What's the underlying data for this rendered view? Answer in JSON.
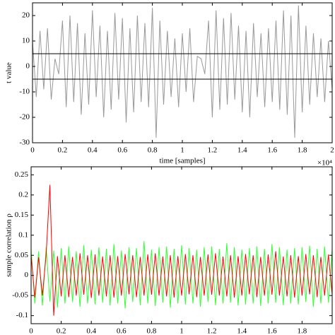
{
  "chart_data": [
    {
      "type": "line",
      "x_label": "time [samples]",
      "y_label": "t value",
      "x_exponent_label": "×10⁴",
      "xlim": [
        0,
        20000
      ],
      "ylim": [
        -30,
        25
      ],
      "xticks": [
        0,
        {
          "value": 2000,
          "label": "0.2"
        },
        {
          "value": 4000,
          "label": "0.4"
        },
        {
          "value": 6000,
          "label": "0.6"
        },
        {
          "value": 8000,
          "label": "0.8"
        },
        {
          "value": 10000,
          "label": "1"
        },
        {
          "value": 12000,
          "label": "1.2"
        },
        {
          "value": 14000,
          "label": "1.4"
        },
        {
          "value": 16000,
          "label": "1.6"
        },
        {
          "value": 18000,
          "label": "1.8"
        },
        {
          "value": 20000,
          "label": "2"
        }
      ],
      "yticks": [
        -30,
        -20,
        -10,
        0,
        10,
        20
      ],
      "reference_lines": [
        5,
        -5
      ],
      "reference_color": "#000000",
      "x": [
        0,
        250,
        500,
        750,
        1000,
        1250,
        1500,
        1750,
        2000,
        2250,
        2500,
        2750,
        3000,
        3250,
        3500,
        3750,
        4000,
        4250,
        4500,
        4750,
        5000,
        5250,
        5500,
        5750,
        6000,
        6250,
        6500,
        6750,
        7000,
        7250,
        7500,
        7750,
        8000,
        8250,
        8500,
        8750,
        9000,
        9250,
        9500,
        9750,
        10000,
        10250,
        10500,
        10750,
        11000,
        11250,
        11500,
        11750,
        12000,
        12250,
        12500,
        12750,
        13000,
        13250,
        13500,
        13750,
        14000,
        14250,
        14500,
        14750,
        15000,
        15250,
        15500,
        15750,
        16000,
        16250,
        16500,
        16750,
        17000,
        17250,
        17500,
        17750,
        18000,
        18250,
        18500,
        18750,
        19000,
        19250,
        19500,
        19750,
        20000
      ],
      "series": [
        {
          "color": "#999999",
          "values": [
            10,
            -12,
            14,
            -9,
            15,
            -13,
            3,
            -3,
            18,
            -16,
            20,
            -14,
            17,
            -19,
            13,
            -15,
            22,
            -12,
            16,
            -20,
            14,
            -17,
            21,
            -13,
            19,
            -22,
            15,
            -18,
            20,
            -14,
            17,
            -16,
            23,
            -28,
            18,
            -15,
            14,
            -12,
            11,
            -16,
            13,
            -10,
            15,
            -14,
            4,
            3,
            -3,
            18,
            -20,
            22,
            -17,
            19,
            -15,
            21,
            -13,
            16,
            -18,
            14,
            -20,
            17,
            -12,
            13,
            -16,
            15,
            -14,
            18,
            -17,
            22,
            -19,
            20,
            -28,
            24,
            -18,
            16,
            -15,
            13,
            -12,
            11,
            -14,
            10,
            -9
          ]
        }
      ]
    },
    {
      "type": "line",
      "y_label": "sample correlation ρ",
      "x_exponent_label": "×10⁴",
      "xlim": [
        0,
        20000
      ],
      "ylim": [
        -0.12,
        0.27
      ],
      "xticks": [
        0,
        {
          "value": 2000,
          "label": "0.2"
        },
        {
          "value": 4000,
          "label": "0.4"
        },
        {
          "value": 6000,
          "label": "0.6"
        },
        {
          "value": 8000,
          "label": "0.8"
        },
        {
          "value": 10000,
          "label": "1"
        },
        {
          "value": 12000,
          "label": "1.2"
        },
        {
          "value": 14000,
          "label": "1.4"
        },
        {
          "value": 16000,
          "label": "1.6"
        },
        {
          "value": 18000,
          "label": "1.8"
        }
      ],
      "yticks": [
        -0.1,
        -0.05,
        0,
        0.05,
        0.1,
        0.15,
        0.2,
        0.25
      ],
      "x": [
        0,
        250,
        500,
        750,
        1000,
        1250,
        1500,
        1750,
        2000,
        2250,
        2500,
        2750,
        3000,
        3250,
        3500,
        3750,
        4000,
        4250,
        4500,
        4750,
        5000,
        5250,
        5500,
        5750,
        6000,
        6250,
        6500,
        6750,
        7000,
        7250,
        7500,
        7750,
        8000,
        8250,
        8500,
        8750,
        9000,
        9250,
        9500,
        9750,
        10000,
        10250,
        10500,
        10750,
        11000,
        11250,
        11500,
        11750,
        12000,
        12250,
        12500,
        12750,
        13000,
        13250,
        13500,
        13750,
        14000,
        14250,
        14500,
        14750,
        15000,
        15250,
        15500,
        15750,
        16000,
        16250,
        16500,
        16750,
        17000,
        17250,
        17500,
        17750,
        18000,
        18250,
        18500,
        18750,
        19000,
        19250,
        19500,
        19750,
        20000
      ],
      "series": [
        {
          "color": "#33ff33",
          "values": [
            0.065,
            -0.07,
            0.06,
            -0.075,
            0.07,
            -0.065,
            0.062,
            -0.08,
            0.068,
            -0.07,
            0.072,
            -0.066,
            0.06,
            -0.078,
            0.075,
            -0.07,
            0.064,
            -0.072,
            0.07,
            -0.068,
            0.066,
            -0.075,
            0.078,
            -0.07,
            0.062,
            -0.082,
            0.07,
            -0.066,
            0.068,
            -0.074,
            0.085,
            -0.07,
            0.064,
            -0.076,
            0.07,
            -0.068,
            0.072,
            -0.08,
            0.066,
            -0.07,
            0.075,
            -0.072,
            0.068,
            -0.07,
            0.064,
            -0.078,
            0.07,
            -0.066,
            0.072,
            -0.074,
            0.066,
            -0.07,
            0.08,
            -0.068,
            0.07,
            -0.075,
            0.064,
            -0.072,
            0.068,
            -0.07,
            0.072,
            -0.076,
            0.066,
            -0.07,
            0.078,
            -0.068,
            0.07,
            -0.074,
            0.064,
            -0.07,
            0.068,
            -0.072,
            0.07,
            -0.066,
            0.074,
            -0.078,
            0.066,
            -0.07,
            0.072,
            -0.068,
            0.065
          ]
        },
        {
          "color": "#ff0000",
          "values": [
            0.05,
            -0.055,
            0.045,
            -0.05,
            0.052,
            0.225,
            -0.1,
            0.048,
            -0.052,
            0.05,
            -0.054,
            0.046,
            -0.05,
            0.055,
            -0.048,
            0.05,
            -0.056,
            0.052,
            -0.05,
            0.047,
            -0.052,
            0.05,
            -0.055,
            0.048,
            -0.05,
            0.053,
            -0.047,
            0.05,
            -0.054,
            0.046,
            -0.05,
            0.052,
            -0.048,
            0.055,
            -0.05,
            0.047,
            -0.052,
            0.05,
            -0.055,
            0.048,
            -0.05,
            0.053,
            -0.047,
            0.05,
            -0.054,
            0.046,
            -0.05,
            0.052,
            -0.048,
            0.055,
            -0.05,
            0.047,
            -0.052,
            0.05,
            -0.055,
            0.048,
            -0.05,
            0.053,
            -0.047,
            0.05,
            -0.054,
            0.046,
            -0.05,
            0.052,
            -0.048,
            0.06,
            -0.05,
            0.047,
            -0.052,
            0.05,
            -0.055,
            0.048,
            -0.05,
            0.053,
            -0.047,
            0.05,
            -0.054,
            0.046,
            -0.05,
            0.052,
            -0.048
          ]
        }
      ]
    }
  ]
}
